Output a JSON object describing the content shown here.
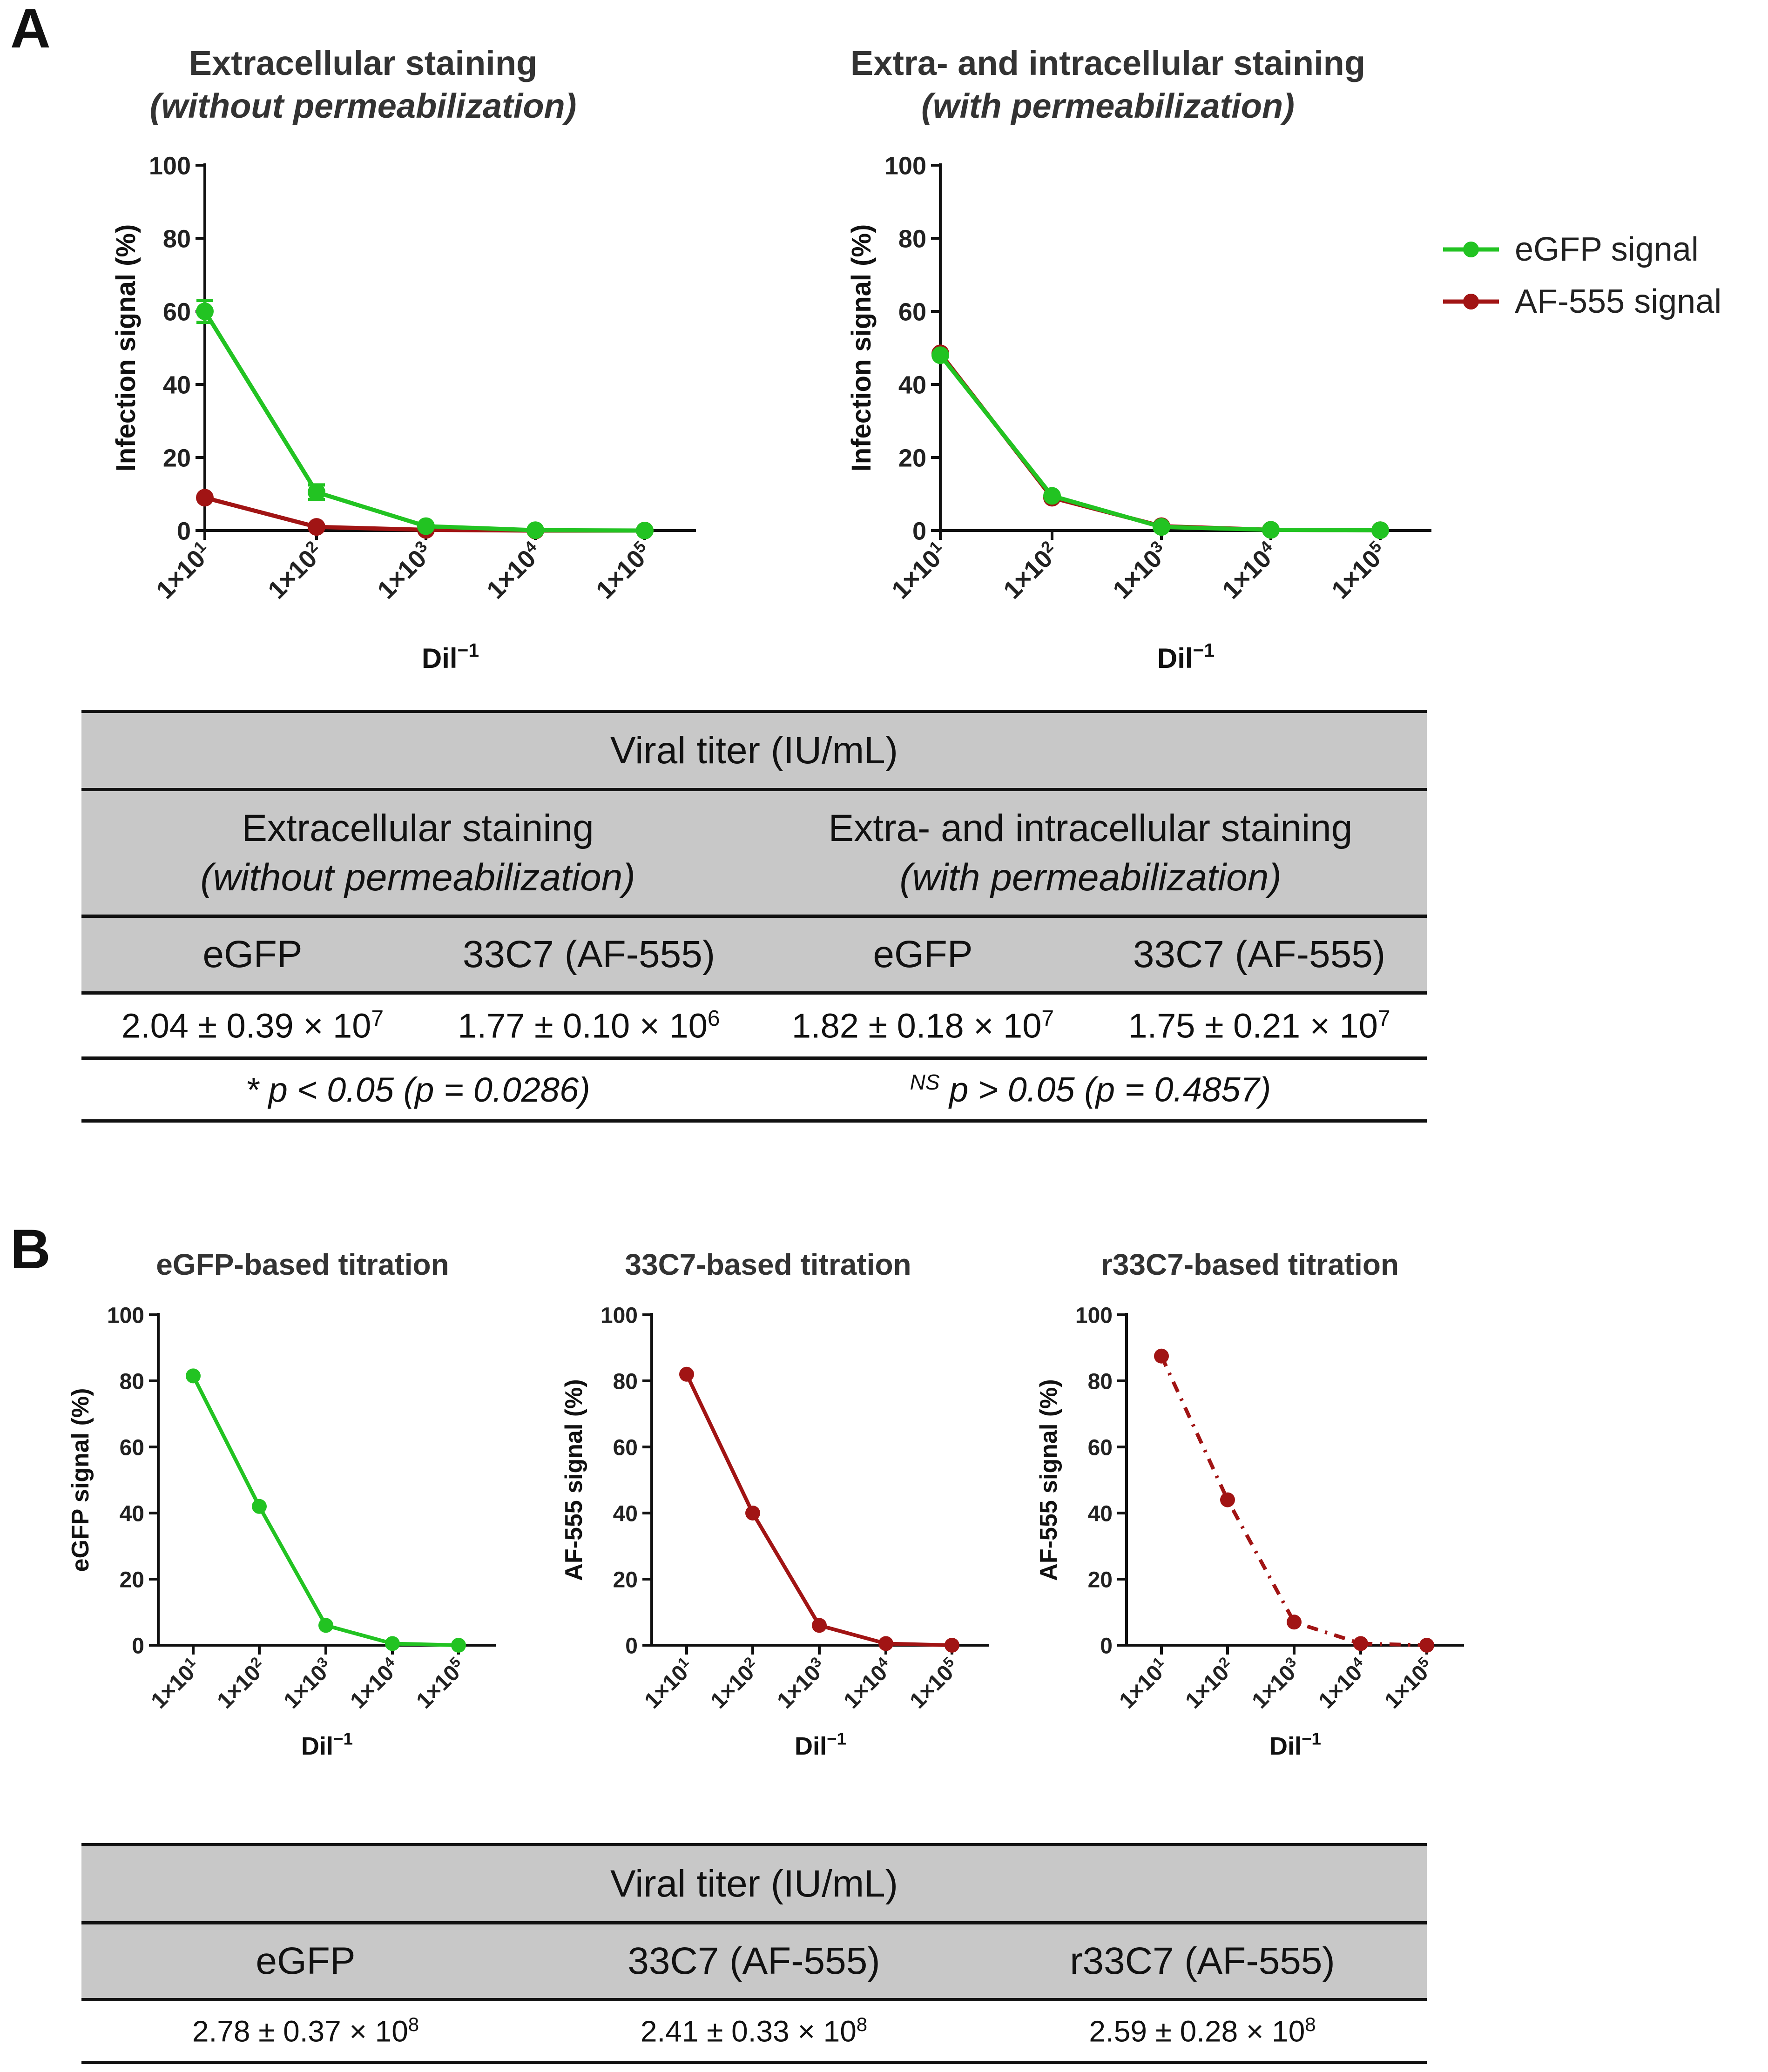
{
  "panels": {
    "a": "A",
    "b": "B"
  },
  "panel_a": {
    "left_title": "Extracellular staining",
    "left_subtitle": "(without permeabilization)",
    "right_title": "Extra- and intracellular staining",
    "right_subtitle": "(with permeabilization)",
    "legend": [
      {
        "label": "eGFP signal",
        "color": "#22c322"
      },
      {
        "label": "AF-555 signal",
        "color": "#a11414"
      }
    ]
  },
  "panel_b": {
    "titles": [
      "eGFP-based titration",
      "33C7-based titration",
      "r33C7-based titration"
    ]
  },
  "colors": {
    "egfp": "#22c322",
    "af555": "#a11414",
    "header_bg": "#c8c8c8"
  },
  "chart_data": [
    {
      "id": "a-left",
      "type": "line",
      "title": "Extracellular staining (without permeabilization)",
      "xlabel": "Dil",
      "ylabel": "Infection signal  (%)",
      "categories": [
        "1×10",
        "1×10",
        "1×10",
        "1×10",
        "1×10"
      ],
      "exponents": [
        "1",
        "2",
        "3",
        "4",
        "5"
      ],
      "yticks": [
        0,
        20,
        40,
        60,
        80,
        100
      ],
      "ylim": [
        0,
        100
      ],
      "series": [
        {
          "name": "AF-555 signal",
          "color": "#a11414",
          "values": [
            9,
            1,
            0.2,
            0,
            0
          ]
        },
        {
          "name": "eGFP signal",
          "color": "#22c322",
          "values": [
            60,
            10.5,
            1.2,
            0.1,
            0
          ],
          "errors": [
            3,
            2,
            0.5,
            0,
            0
          ]
        }
      ]
    },
    {
      "id": "a-right",
      "type": "line",
      "title": "Extra- and intracellular staining (with permeabilization)",
      "xlabel": "Dil",
      "ylabel": "Infection signal  (%)",
      "categories": [
        "1×10",
        "1×10",
        "1×10",
        "1×10",
        "1×10"
      ],
      "exponents": [
        "1",
        "2",
        "3",
        "4",
        "5"
      ],
      "yticks": [
        0,
        20,
        40,
        60,
        80,
        100
      ],
      "ylim": [
        0,
        100
      ],
      "series": [
        {
          "name": "AF-555 signal",
          "color": "#a11414",
          "values": [
            48.5,
            9,
            1.2,
            0.2,
            0.1
          ]
        },
        {
          "name": "eGFP signal",
          "color": "#22c322",
          "values": [
            48,
            9.5,
            1,
            0.2,
            0.1
          ]
        }
      ]
    },
    {
      "id": "b-1",
      "type": "line",
      "title": "eGFP-based titration",
      "xlabel": "Dil",
      "ylabel": "eGFP signal  (%)",
      "categories": [
        "1×10",
        "1×10",
        "1×10",
        "1×10",
        "1×10"
      ],
      "exponents": [
        "1",
        "2",
        "3",
        "4",
        "5"
      ],
      "yticks": [
        0,
        20,
        40,
        60,
        80,
        100
      ],
      "ylim": [
        0,
        100
      ],
      "series": [
        {
          "name": "eGFP signal",
          "color": "#22c322",
          "values": [
            81.5,
            42,
            6,
            0.5,
            0
          ]
        }
      ]
    },
    {
      "id": "b-2",
      "type": "line",
      "title": "33C7-based titration",
      "xlabel": "Dil",
      "ylabel": "AF-555 signal  (%)",
      "categories": [
        "1×10",
        "1×10",
        "1×10",
        "1×10",
        "1×10"
      ],
      "exponents": [
        "1",
        "2",
        "3",
        "4",
        "5"
      ],
      "yticks": [
        0,
        20,
        40,
        60,
        80,
        100
      ],
      "ylim": [
        0,
        100
      ],
      "series": [
        {
          "name": "AF-555 signal",
          "color": "#a11414",
          "values": [
            82,
            40,
            6,
            0.5,
            0
          ]
        }
      ]
    },
    {
      "id": "b-3",
      "type": "line",
      "title": "r33C7-based titration",
      "xlabel": "Dil",
      "ylabel": "AF-555 signal  (%)",
      "categories": [
        "1×10",
        "1×10",
        "1×10",
        "1×10",
        "1×10"
      ],
      "exponents": [
        "1",
        "2",
        "3",
        "4",
        "5"
      ],
      "yticks": [
        0,
        20,
        40,
        60,
        80,
        100
      ],
      "ylim": [
        0,
        100
      ],
      "series": [
        {
          "name": "AF-555 signal",
          "color": "#a11414",
          "dashed": true,
          "values": [
            87.5,
            44,
            7,
            0.5,
            0
          ]
        }
      ]
    }
  ],
  "table_a": {
    "header": "Viral titer (IU/mL)",
    "group1": "Extracellular staining",
    "group1_sub": "(without permeabilization)",
    "group2": "Extra- and intracellular staining",
    "group2_sub": "(with permeabilization)",
    "cols": [
      "eGFP",
      "33C7 (AF-555)",
      "eGFP",
      "33C7 (AF-555)"
    ],
    "values": [
      {
        "base": "2.04 ± 0.39 × 10",
        "exp": "7"
      },
      {
        "base": "1.77 ± 0.10 × 10",
        "exp": "6"
      },
      {
        "base": "1.82 ± 0.18 × 10",
        "exp": "7"
      },
      {
        "base": "1.75 ± 0.21 × 10",
        "exp": "7"
      }
    ],
    "stat1": "* p < 0.05 (p = 0.0286)",
    "stat2_sup": "NS",
    "stat2": " p > 0.05 (p = 0.4857)"
  },
  "table_b": {
    "header": "Viral titer (IU/mL)",
    "cols": [
      "eGFP",
      "33C7 (AF-555)",
      "r33C7 (AF-555)"
    ],
    "values": [
      {
        "base": "2.78 ± 0.37 × 10",
        "exp": "8"
      },
      {
        "base": "2.41 ± 0.33 × 10",
        "exp": "8"
      },
      {
        "base": "2.59 ± 0.28 × 10",
        "exp": "8"
      }
    ]
  }
}
